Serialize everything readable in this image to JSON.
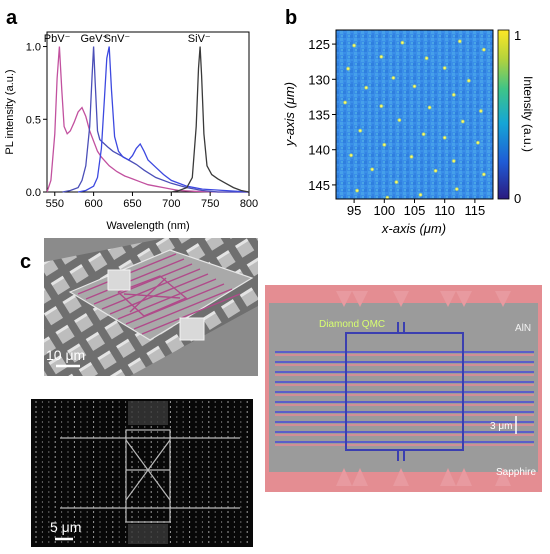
{
  "panels": {
    "a": {
      "label": "a"
    },
    "b": {
      "label": "b"
    },
    "c": {
      "label": "c"
    }
  },
  "chart_data": [
    {
      "panel": "a",
      "type": "line",
      "xlabel": "Wavelength (nm)",
      "ylabel": "PL intensity (a.u.)",
      "xlim": [
        540,
        800
      ],
      "ylim": [
        0,
        1.1
      ],
      "xticks": [
        550,
        600,
        650,
        700,
        750,
        800
      ],
      "yticks": [
        0.0,
        0.5,
        1.0
      ],
      "ytick_labels": [
        "0.0",
        "0.5",
        "1.0"
      ],
      "grid": false,
      "series": [
        {
          "name": "PbV⁻",
          "color": "#c2519f",
          "x": [
            540,
            545,
            550,
            553,
            556,
            559,
            562,
            566,
            570,
            575,
            580,
            585,
            590,
            595,
            600,
            605,
            610,
            620,
            630,
            640,
            650,
            660,
            670,
            680,
            690,
            700,
            710,
            730,
            760,
            800
          ],
          "y": [
            0.0,
            0.08,
            0.4,
            0.78,
            1.0,
            0.7,
            0.45,
            0.4,
            0.42,
            0.48,
            0.55,
            0.58,
            0.52,
            0.42,
            0.35,
            0.28,
            0.24,
            0.18,
            0.14,
            0.11,
            0.09,
            0.07,
            0.05,
            0.04,
            0.03,
            0.02,
            0.01,
            0.005,
            0.0,
            0.0
          ]
        },
        {
          "name": "GeV⁻",
          "color": "#4b4fb8",
          "x": [
            560,
            570,
            580,
            585,
            590,
            595,
            598,
            600,
            602,
            605,
            608,
            612,
            618,
            625,
            635,
            645,
            655,
            665,
            680,
            700,
            720,
            740,
            760,
            800
          ],
          "y": [
            0.0,
            0.01,
            0.03,
            0.08,
            0.18,
            0.45,
            0.8,
            1.0,
            0.75,
            0.42,
            0.36,
            0.34,
            0.31,
            0.28,
            0.25,
            0.22,
            0.19,
            0.15,
            0.1,
            0.06,
            0.03,
            0.01,
            0.0,
            0.0
          ]
        },
        {
          "name": "SnV⁻",
          "color": "#3d49e0",
          "x": [
            580,
            590,
            600,
            605,
            610,
            614,
            617,
            620,
            623,
            627,
            632,
            638,
            645,
            650,
            655,
            660,
            665,
            670,
            680,
            690,
            700,
            720,
            740,
            800
          ],
          "y": [
            0.0,
            0.01,
            0.04,
            0.1,
            0.3,
            0.65,
            0.92,
            1.0,
            0.7,
            0.38,
            0.28,
            0.24,
            0.22,
            0.25,
            0.3,
            0.33,
            0.28,
            0.22,
            0.17,
            0.12,
            0.08,
            0.04,
            0.02,
            0.0
          ]
        },
        {
          "name": "SiV⁻",
          "color": "#3a3a3a",
          "x": [
            700,
            710,
            720,
            727,
            732,
            735,
            737,
            739,
            742,
            746,
            752,
            760,
            770,
            780,
            790,
            800
          ],
          "y": [
            0.0,
            0.01,
            0.03,
            0.1,
            0.45,
            0.85,
            1.0,
            0.8,
            0.4,
            0.18,
            0.12,
            0.09,
            0.06,
            0.03,
            0.01,
            0.0
          ]
        }
      ]
    },
    {
      "panel": "b",
      "type": "heatmap",
      "xlabel": "x-axis (μm)",
      "ylabel": "y-axis (μm)",
      "xlim": [
        92,
        118
      ],
      "ylim": [
        123,
        147
      ],
      "xticks": [
        95,
        100,
        105,
        110,
        115
      ],
      "yticks": [
        125,
        130,
        135,
        140,
        145
      ],
      "y_inverted": true,
      "colorbar": {
        "label": "Intensity (a.u.)",
        "min": 0,
        "max": 1,
        "tick_labels": [
          "0",
          "1"
        ],
        "colors": [
          "#2b1a7e",
          "#1f5cd6",
          "#15a6d6",
          "#3ec488",
          "#b4d33c",
          "#fde725"
        ]
      },
      "background_color": "#3a8fe8",
      "bright_spots": [
        [
          95.0,
          125.2
        ],
        [
          103.0,
          124.8
        ],
        [
          112.5,
          124.6
        ],
        [
          116.5,
          125.8
        ],
        [
          99.5,
          126.8
        ],
        [
          107.0,
          127.0
        ],
        [
          94.0,
          128.5
        ],
        [
          110.0,
          128.4
        ],
        [
          101.5,
          129.8
        ],
        [
          114.0,
          130.2
        ],
        [
          97.0,
          131.2
        ],
        [
          105.0,
          131.0
        ],
        [
          111.5,
          132.2
        ],
        [
          93.5,
          133.3
        ],
        [
          99.5,
          133.8
        ],
        [
          107.5,
          134.0
        ],
        [
          116.0,
          134.5
        ],
        [
          102.5,
          135.8
        ],
        [
          113.0,
          136.0
        ],
        [
          96.0,
          137.3
        ],
        [
          106.5,
          137.8
        ],
        [
          110.0,
          138.3
        ],
        [
          100.0,
          139.3
        ],
        [
          115.5,
          139.0
        ],
        [
          94.5,
          140.8
        ],
        [
          104.5,
          141.0
        ],
        [
          111.5,
          141.6
        ],
        [
          98.0,
          142.8
        ],
        [
          108.5,
          143.0
        ],
        [
          116.5,
          143.5
        ],
        [
          102.0,
          144.6
        ],
        [
          95.5,
          145.8
        ],
        [
          112.0,
          145.6
        ],
        [
          106.0,
          146.4
        ],
        [
          100.5,
          146.8
        ]
      ]
    }
  ],
  "images": {
    "sem": {
      "scale_label": "10 μm"
    },
    "pl_image": {
      "scale_label": "5 μm"
    },
    "micrograph": {
      "label_qmc": "Diamond QMC",
      "label_aln": "AlN",
      "label_scale": "3 μm",
      "label_substrate": "Sapphire"
    }
  }
}
